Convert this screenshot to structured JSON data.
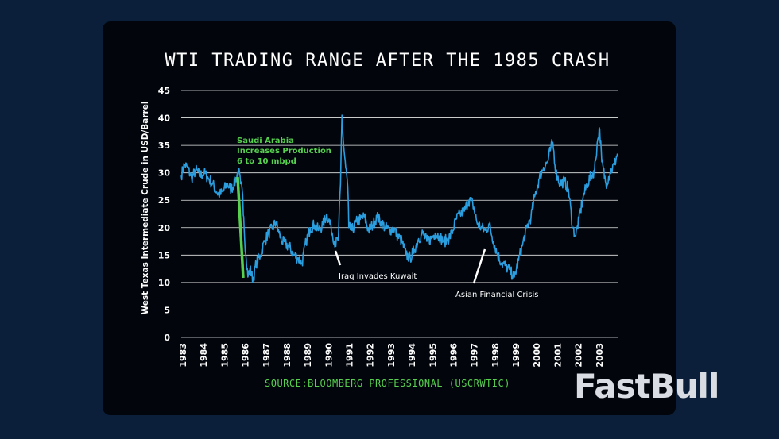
{
  "chart_data": {
    "type": "line",
    "title": "WTI TRADING RANGE AFTER THE 1985 CRASH",
    "ylabel": "West Texas Intermediate Crude in USD/Barrel",
    "xlabel": "",
    "ylim": [
      0,
      45
    ],
    "yticks": [
      0,
      5,
      10,
      15,
      20,
      25,
      30,
      35,
      40,
      45
    ],
    "xlim": [
      1983,
      2004
    ],
    "xtick_labels": [
      "1983",
      "1984",
      "1985",
      "1986",
      "1987",
      "1988",
      "1989",
      "1990",
      "1991",
      "1992",
      "1993",
      "1994",
      "1995",
      "1996",
      "1997",
      "1998",
      "1999",
      "2000",
      "2001",
      "2002",
      "2003"
    ],
    "grid": true,
    "series": [
      {
        "name": "WTI",
        "color": "#2b9ee0",
        "x": [
          1983.0,
          1983.15,
          1983.3,
          1983.5,
          1983.7,
          1983.9,
          1984.1,
          1984.3,
          1984.5,
          1984.7,
          1984.85,
          1985.0,
          1985.2,
          1985.4,
          1985.6,
          1985.75,
          1985.85,
          1985.95,
          1986.0,
          1986.1,
          1986.2,
          1986.3,
          1986.45,
          1986.6,
          1986.8,
          1987.0,
          1987.2,
          1987.4,
          1987.55,
          1987.7,
          1987.85,
          1988.0,
          1988.2,
          1988.4,
          1988.6,
          1988.8,
          1989.0,
          1989.2,
          1989.4,
          1989.6,
          1989.8,
          1990.0,
          1990.2,
          1990.4,
          1990.55,
          1990.65,
          1990.72,
          1990.8,
          1990.9,
          1991.0,
          1991.05,
          1991.2,
          1991.4,
          1991.6,
          1991.8,
          1992.0,
          1992.2,
          1992.4,
          1992.6,
          1992.8,
          1993.0,
          1993.2,
          1993.4,
          1993.6,
          1993.8,
          1994.0,
          1994.2,
          1994.4,
          1994.6,
          1994.8,
          1995.0,
          1995.2,
          1995.4,
          1995.6,
          1995.8,
          1996.0,
          1996.2,
          1996.4,
          1996.6,
          1996.8,
          1997.0,
          1997.2,
          1997.4,
          1997.6,
          1997.8,
          1998.0,
          1998.2,
          1998.4,
          1998.6,
          1998.8,
          1999.0,
          1999.2,
          1999.4,
          1999.6,
          1999.8,
          2000.0,
          2000.2,
          2000.4,
          2000.6,
          2000.75,
          2000.85,
          2001.0,
          2001.2,
          2001.4,
          2001.6,
          2001.8,
          2001.95,
          2002.1,
          2002.3,
          2002.5,
          2002.7,
          2002.85,
          2003.0,
          2003.1,
          2003.2,
          2003.4,
          2003.6,
          2003.8,
          2003.95
        ],
        "values": [
          29.5,
          31.5,
          31.0,
          29.0,
          30.5,
          29.5,
          30.0,
          29.0,
          28.0,
          26.5,
          26.0,
          26.5,
          28.0,
          27.0,
          28.5,
          30.5,
          28.0,
          26.0,
          22.0,
          15.0,
          11.0,
          12.5,
          10.5,
          13.5,
          15.0,
          17.5,
          19.0,
          20.0,
          21.0,
          19.0,
          17.5,
          17.0,
          16.5,
          15.0,
          14.5,
          13.5,
          17.5,
          20.0,
          20.5,
          19.5,
          20.5,
          22.5,
          20.0,
          17.0,
          18.0,
          28.0,
          40.5,
          35.0,
          31.0,
          27.5,
          20.0,
          19.5,
          21.0,
          21.5,
          22.0,
          19.5,
          20.5,
          22.0,
          21.0,
          20.0,
          19.5,
          20.0,
          18.5,
          17.5,
          15.0,
          14.5,
          16.0,
          18.0,
          19.0,
          17.5,
          18.0,
          19.0,
          18.5,
          17.5,
          17.8,
          19.0,
          21.5,
          22.5,
          23.0,
          25.0,
          24.5,
          21.0,
          20.0,
          19.5,
          20.5,
          17.5,
          15.0,
          13.5,
          13.0,
          12.0,
          11.0,
          14.0,
          17.0,
          20.0,
          22.0,
          26.0,
          29.0,
          31.0,
          32.0,
          34.5,
          35.5,
          30.0,
          28.0,
          28.5,
          27.0,
          20.0,
          18.5,
          21.5,
          25.5,
          28.0,
          29.5,
          30.5,
          36.0,
          38.0,
          32.0,
          28.0,
          30.0,
          31.5,
          33.5
        ]
      }
    ],
    "annotations": [
      {
        "lines": [
          "Saudi Arabia",
          "Increases Production",
          "6 to 10 mbpd"
        ],
        "color": "green",
        "x": 1986.0,
        "y": 11
      }
    ]
  },
  "annotation_iraq": "Iraq Invades Kuwait",
  "annotation_asian": "Asian Financial Crisis",
  "source": "SOURCE:BLOOMBERG PROFESSIONAL (USCRWTIC)",
  "brand": "FastBull",
  "colors": {
    "background": "#0b1f3a",
    "card": "#02060c",
    "line": "#2b9ee0",
    "accent_green": "#56d04e"
  }
}
